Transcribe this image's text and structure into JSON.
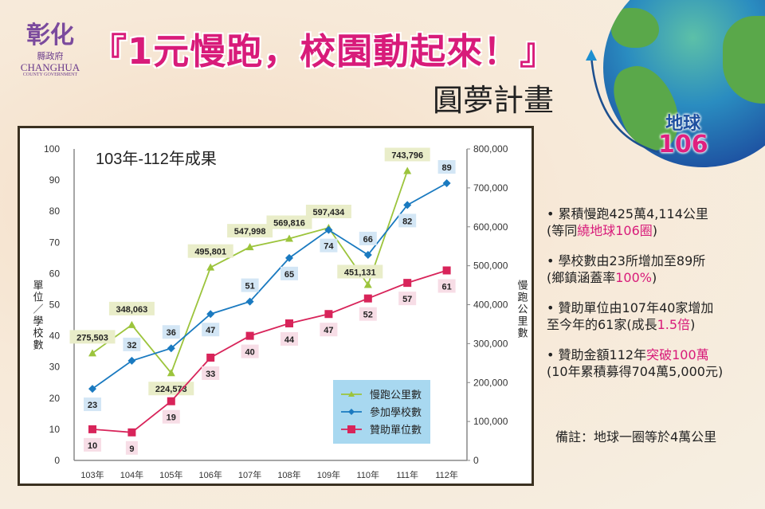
{
  "logo": {
    "zh": "彰化",
    "sub": "縣政府",
    "en": "CHANGHUA",
    "en2": "COUNTY GOVERNMENT"
  },
  "title": "『1元慢跑，校園動起來！』",
  "subtitle": "圓夢計畫",
  "badge": {
    "line1": "地球",
    "line2": "106"
  },
  "colors": {
    "km": "#9cc43c",
    "schools": "#1a7ac0",
    "sponsors": "#d8245a",
    "accent": "#d81b7a",
    "legend_bg": "#a8d8f0"
  },
  "notes": [
    {
      "parts": [
        [
          "累積慢跑425萬4,114公里",
          false
        ]
      ],
      "parts2": [
        [
          "(等同",
          false
        ],
        [
          "繞地球106圈",
          true
        ],
        [
          ")",
          false
        ]
      ]
    },
    {
      "parts": [
        [
          "學校數由23所增加至89所",
          false
        ]
      ],
      "parts2": [
        [
          "(鄉鎮涵蓋率",
          false
        ],
        [
          "100%",
          true
        ],
        [
          ")",
          false
        ]
      ]
    },
    {
      "parts": [
        [
          "贊助單位由107年40家增加",
          false
        ]
      ],
      "parts2": [
        [
          "至今年的61家(成長",
          false
        ],
        [
          "1.5倍",
          true
        ],
        [
          ")",
          false
        ]
      ]
    },
    {
      "parts": [
        [
          "贊助金額112年",
          false
        ],
        [
          "突破100萬",
          true
        ]
      ],
      "parts2": [
        [
          "(10年累積募得704萬5,000元)",
          false
        ]
      ]
    }
  ],
  "remark": "備註：地球一圈等於4萬公里",
  "chart_data": {
    "type": "line",
    "title": "103年-112年成果",
    "categories": [
      "103年",
      "104年",
      "105年",
      "106年",
      "107年",
      "108年",
      "109年",
      "110年",
      "111年",
      "112年"
    ],
    "ylabel": "單位／學校數",
    "y2label": "慢跑公里數",
    "ylim": [
      0,
      100
    ],
    "y2lim": [
      0,
      800000
    ],
    "yticks": [
      "0",
      "10",
      "20",
      "30",
      "40",
      "50",
      "60",
      "70",
      "80",
      "90",
      "100"
    ],
    "y2ticks": [
      "0",
      "100,000",
      "200,000",
      "300,000",
      "400,000",
      "500,000",
      "600,000",
      "700,000",
      "800,000"
    ],
    "legend_position": "bottom-right",
    "grid": false,
    "series": [
      {
        "name": "慢跑公里數",
        "axis": "right",
        "marker": "triangle",
        "values": [
          275503,
          348063,
          224573,
          495801,
          547998,
          569816,
          597434,
          451131,
          743796,
          null
        ],
        "labels": [
          "275,503",
          "348,063",
          "224,573",
          "495,801",
          "547,998",
          "569,816",
          "597,434",
          "451,131",
          "743,796",
          null
        ]
      },
      {
        "name": "參加學校數",
        "axis": "left",
        "marker": "diamond",
        "values": [
          23,
          32,
          36,
          47,
          51,
          65,
          74,
          66,
          82,
          89
        ],
        "labels": [
          "23",
          "32",
          "36",
          "47",
          "51",
          "65",
          "74",
          "66",
          "82",
          "89"
        ]
      },
      {
        "name": "贊助單位數",
        "axis": "left",
        "marker": "square",
        "values": [
          10,
          9,
          19,
          33,
          40,
          44,
          47,
          52,
          57,
          61
        ],
        "labels": [
          "10",
          "9",
          "19",
          "33",
          "40",
          "44",
          "47",
          "52",
          "57",
          "61"
        ]
      }
    ]
  }
}
